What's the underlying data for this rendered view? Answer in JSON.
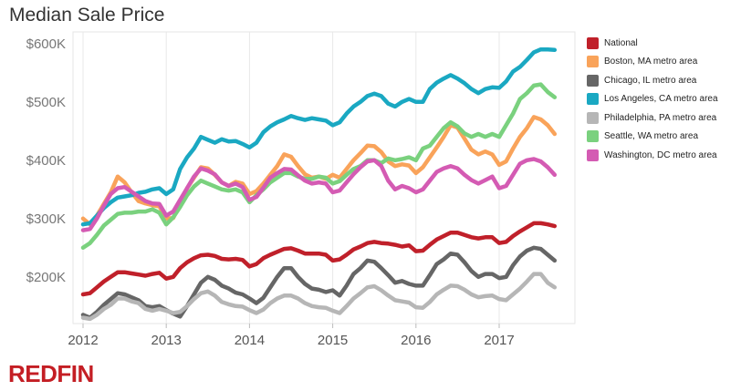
{
  "chart_data": {
    "type": "line",
    "title": "Median Sale Price",
    "xlabel": "",
    "ylabel": "",
    "x_ticks": [
      "2012",
      "2013",
      "2014",
      "2015",
      "2016",
      "2017"
    ],
    "y_ticks": [
      "$200K",
      "$300K",
      "$400K",
      "$500K",
      "$600K"
    ],
    "y_tick_values": [
      200000,
      300000,
      400000,
      500000,
      600000
    ],
    "ylim": [
      120000,
      620000
    ],
    "xlim": [
      "2012-01",
      "2017-12"
    ],
    "grid": "vertical",
    "legend_position": "right",
    "x_start": "2012-01",
    "x_interval": "month",
    "series": [
      {
        "name": "National",
        "color": "#c0202a",
        "values": [
          170000,
          172000,
          182000,
          192000,
          200000,
          208000,
          208000,
          206000,
          204000,
          202000,
          205000,
          207000,
          197000,
          200000,
          215000,
          225000,
          232000,
          237000,
          238000,
          236000,
          231000,
          230000,
          231000,
          229000,
          218000,
          222000,
          232000,
          238000,
          243000,
          248000,
          249000,
          245000,
          240000,
          240000,
          240000,
          238000,
          228000,
          230000,
          238000,
          247000,
          252000,
          258000,
          260000,
          258000,
          257000,
          255000,
          252000,
          254000,
          244000,
          245000,
          255000,
          264000,
          270000,
          276000,
          276000,
          272000,
          268000,
          266000,
          268000,
          268000,
          258000,
          260000,
          270000,
          278000,
          285000,
          292000,
          292000,
          290000,
          287000
        ]
      },
      {
        "name": "Boston, MA metro area",
        "color": "#f9a35a",
        "values": [
          300000,
          290000,
          305000,
          325000,
          345000,
          372000,
          362000,
          345000,
          330000,
          326000,
          323000,
          321000,
          300000,
          301000,
          325000,
          352000,
          370000,
          388000,
          386000,
          375000,
          362000,
          356000,
          363000,
          360000,
          342000,
          347000,
          360000,
          375000,
          390000,
          410000,
          406000,
          390000,
          376000,
          370000,
          372000,
          368000,
          375000,
          370000,
          385000,
          400000,
          412000,
          425000,
          424000,
          414000,
          398000,
          390000,
          393000,
          391000,
          378000,
          388000,
          405000,
          422000,
          440000,
          460000,
          456000,
          437000,
          418000,
          410000,
          415000,
          410000,
          392000,
          398000,
          420000,
          440000,
          455000,
          474000,
          470000,
          460000,
          445000
        ]
      },
      {
        "name": "Chicago, IL metro area",
        "color": "#666666",
        "values": [
          135000,
          130000,
          140000,
          152000,
          162000,
          172000,
          170000,
          165000,
          160000,
          150000,
          148000,
          150000,
          143000,
          137000,
          132000,
          150000,
          170000,
          190000,
          200000,
          195000,
          185000,
          180000,
          173000,
          170000,
          163000,
          155000,
          164000,
          182000,
          200000,
          215000,
          215000,
          200000,
          188000,
          180000,
          178000,
          174000,
          177000,
          168000,
          185000,
          205000,
          215000,
          228000,
          226000,
          215000,
          203000,
          190000,
          193000,
          188000,
          185000,
          185000,
          203000,
          222000,
          230000,
          240000,
          238000,
          225000,
          210000,
          200000,
          205000,
          205000,
          198000,
          200000,
          220000,
          235000,
          245000,
          250000,
          248000,
          238000,
          228000
        ]
      },
      {
        "name": "Los Angeles, CA metro area",
        "color": "#1aa8c2",
        "values": [
          290000,
          292000,
          305000,
          318000,
          328000,
          336000,
          338000,
          340000,
          344000,
          346000,
          350000,
          352000,
          342000,
          350000,
          385000,
          405000,
          420000,
          440000,
          435000,
          430000,
          436000,
          432000,
          433000,
          428000,
          422000,
          430000,
          448000,
          458000,
          465000,
          470000,
          476000,
          472000,
          469000,
          472000,
          470000,
          468000,
          460000,
          465000,
          480000,
          492000,
          500000,
          510000,
          514000,
          510000,
          497000,
          492000,
          500000,
          505000,
          500000,
          500000,
          522000,
          533000,
          540000,
          546000,
          540000,
          532000,
          522000,
          515000,
          522000,
          525000,
          524000,
          535000,
          552000,
          560000,
          572000,
          585000,
          590000,
          590000,
          589000
        ]
      },
      {
        "name": "Philadelphia, PA metro area",
        "color": "#b6b6b6",
        "values": [
          130000,
          128000,
          135000,
          145000,
          152000,
          163000,
          163000,
          158000,
          155000,
          145000,
          142000,
          145000,
          142000,
          138000,
          140000,
          150000,
          162000,
          172000,
          175000,
          168000,
          157000,
          153000,
          150000,
          149000,
          143000,
          138000,
          144000,
          155000,
          163000,
          168000,
          168000,
          163000,
          155000,
          150000,
          148000,
          147000,
          142000,
          138000,
          150000,
          163000,
          172000,
          182000,
          184000,
          177000,
          168000,
          160000,
          158000,
          156000,
          148000,
          147000,
          157000,
          170000,
          178000,
          185000,
          184000,
          178000,
          170000,
          165000,
          167000,
          168000,
          162000,
          160000,
          170000,
          180000,
          192000,
          205000,
          205000,
          190000,
          182000
        ]
      },
      {
        "name": "Seattle, WA metro area",
        "color": "#7ad17e",
        "values": [
          250000,
          258000,
          272000,
          288000,
          298000,
          308000,
          310000,
          310000,
          312000,
          312000,
          316000,
          310000,
          290000,
          302000,
          320000,
          340000,
          355000,
          365000,
          360000,
          355000,
          350000,
          348000,
          350000,
          345000,
          328000,
          340000,
          350000,
          362000,
          370000,
          378000,
          378000,
          372000,
          368000,
          368000,
          372000,
          370000,
          360000,
          364000,
          375000,
          385000,
          390000,
          400000,
          400000,
          395000,
          403000,
          400000,
          402000,
          405000,
          400000,
          420000,
          425000,
          440000,
          455000,
          465000,
          458000,
          446000,
          440000,
          445000,
          440000,
          445000,
          440000,
          460000,
          480000,
          505000,
          515000,
          528000,
          530000,
          517000,
          508000
        ]
      },
      {
        "name": "Washington, DC metro area",
        "color": "#d45bb3",
        "values": [
          280000,
          282000,
          300000,
          322000,
          342000,
          352000,
          354000,
          346000,
          338000,
          330000,
          326000,
          325000,
          305000,
          312000,
          332000,
          352000,
          372000,
          386000,
          382000,
          376000,
          362000,
          356000,
          360000,
          354000,
          332000,
          337000,
          353000,
          370000,
          378000,
          385000,
          384000,
          374000,
          365000,
          360000,
          362000,
          360000,
          345000,
          348000,
          362000,
          376000,
          388000,
          398000,
          400000,
          390000,
          365000,
          350000,
          356000,
          352000,
          345000,
          350000,
          365000,
          380000,
          386000,
          390000,
          386000,
          375000,
          366000,
          360000,
          366000,
          372000,
          352000,
          356000,
          375000,
          394000,
          400000,
          402000,
          398000,
          388000,
          375000
        ]
      }
    ]
  },
  "brand": {
    "logo_text": "REDFIN",
    "logo_color": "#c41e24"
  }
}
